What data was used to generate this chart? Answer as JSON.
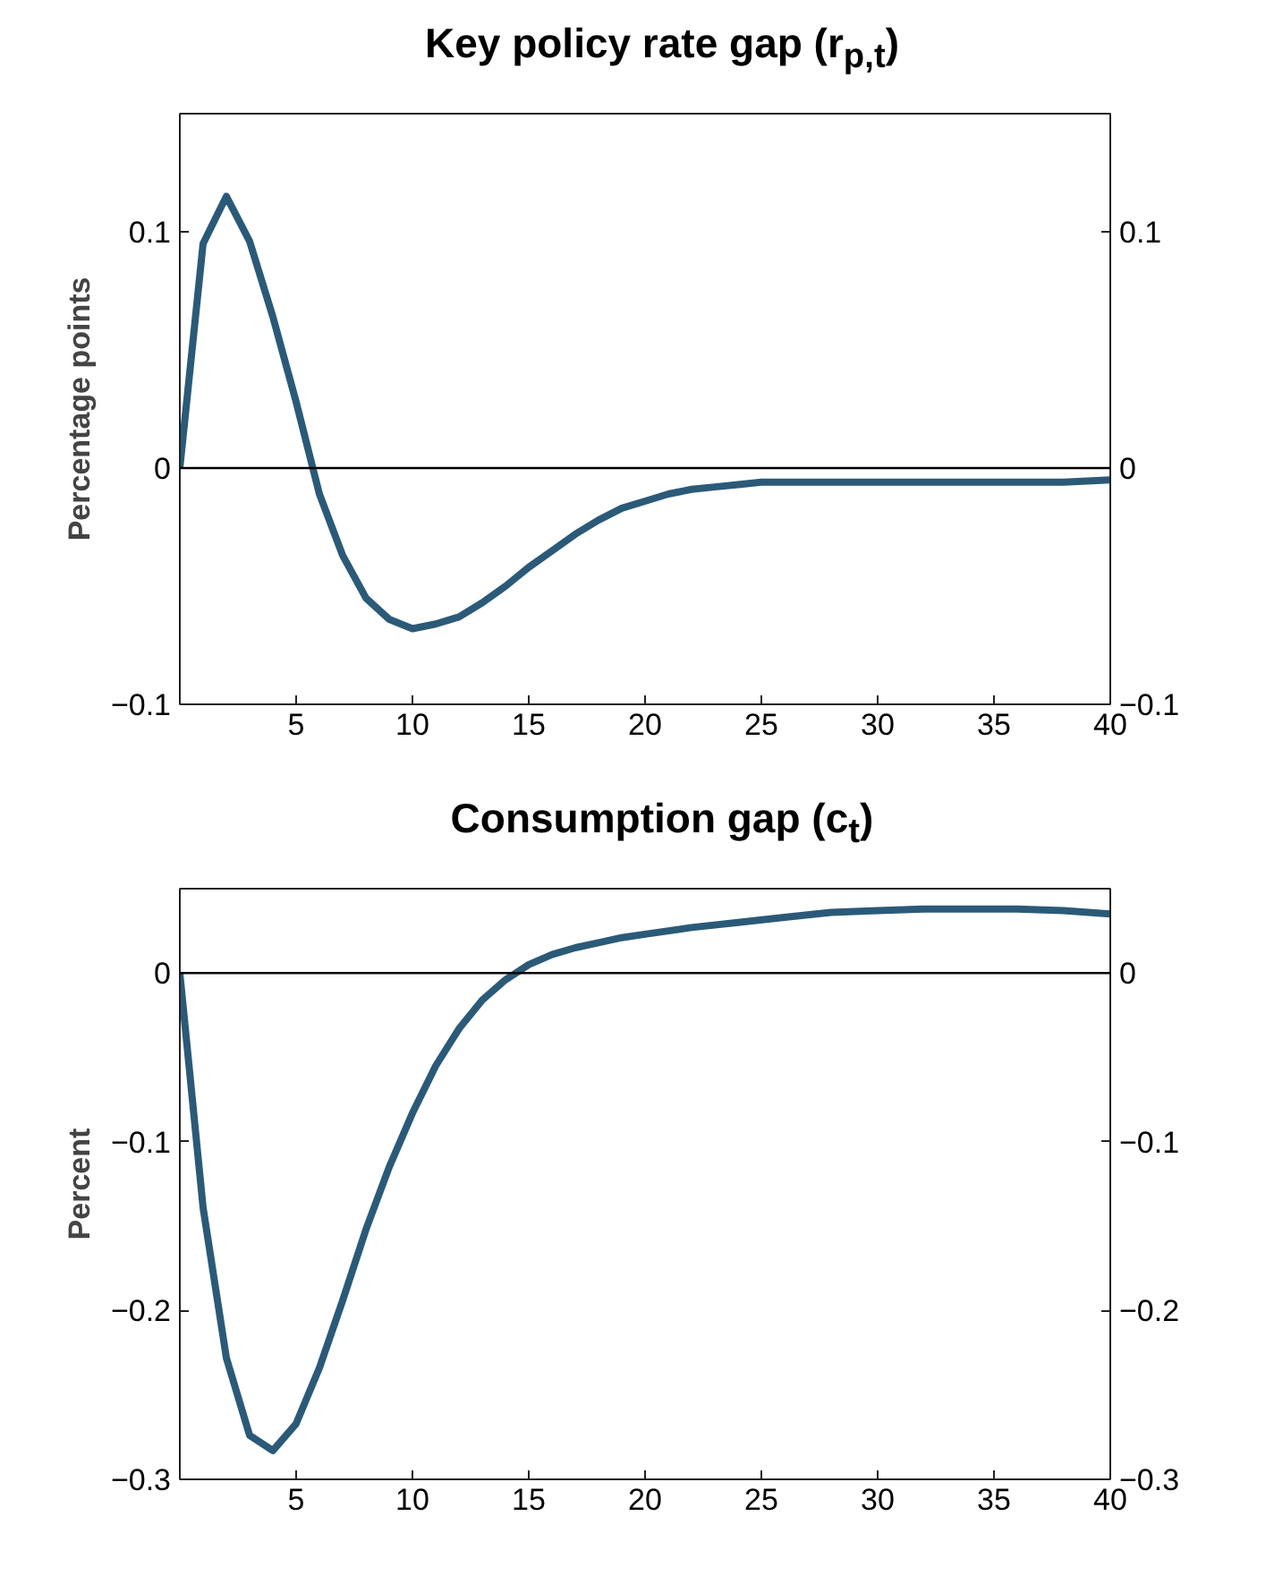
{
  "chart_data": [
    {
      "type": "line",
      "title": "Key policy rate gap (r$_{p,t}$)",
      "ylabel": "Percentage points",
      "x": [
        0,
        1,
        2,
        3,
        4,
        5,
        6,
        7,
        8,
        9,
        10,
        11,
        12,
        13,
        14,
        15,
        16,
        17,
        18,
        19,
        20,
        21,
        22,
        23,
        24,
        25,
        26,
        28,
        30,
        32,
        34,
        36,
        38,
        40
      ],
      "series": [
        {
          "color": "#2b5a78",
          "values": [
            0,
            0.095,
            0.115,
            0.096,
            0.064,
            0.028,
            -0.011,
            -0.037,
            -0.055,
            -0.064,
            -0.068,
            -0.066,
            -0.063,
            -0.057,
            -0.05,
            -0.042,
            -0.035,
            -0.028,
            -0.022,
            -0.017,
            -0.014,
            -0.011,
            -0.009,
            -0.008,
            -0.007,
            -0.006,
            -0.006,
            -0.006,
            -0.006,
            -0.006,
            -0.006,
            -0.006,
            -0.006,
            -0.005
          ]
        }
      ],
      "xlim": [
        0,
        40
      ],
      "xticks": [
        5,
        10,
        15,
        20,
        25,
        30,
        35,
        40
      ],
      "ylim": [
        -0.1,
        0.15
      ],
      "yticks": [
        {
          "value": -0.1,
          "label": "−0.1"
        },
        0,
        0.1
      ],
      "y2lim": [
        -0.1,
        0.15
      ],
      "y2ticks": [
        {
          "value": -0.1,
          "label": "−0.1"
        },
        0,
        0.1
      ],
      "ref_lines": [
        {
          "axis": "y",
          "value": 0,
          "color": "#000000"
        }
      ],
      "grid": false,
      "line_style": "solid",
      "marker": "none"
    },
    {
      "type": "line",
      "title": "Consumption gap (c$_{t}$)",
      "ylabel": "Percent",
      "x": [
        0,
        1,
        2,
        3,
        4,
        5,
        6,
        7,
        8,
        9,
        10,
        11,
        12,
        13,
        14,
        15,
        16,
        17,
        18,
        19,
        20,
        22,
        24,
        26,
        28,
        30,
        32,
        34,
        36,
        38,
        40
      ],
      "series": [
        {
          "color": "#2b5a78",
          "values": [
            0,
            -0.139,
            -0.228,
            -0.274,
            -0.283,
            -0.267,
            -0.234,
            -0.194,
            -0.152,
            -0.115,
            -0.083,
            -0.055,
            -0.033,
            -0.016,
            -0.004,
            0.005,
            0.011,
            0.015,
            0.018,
            0.021,
            0.023,
            0.027,
            0.03,
            0.033,
            0.036,
            0.037,
            0.038,
            0.038,
            0.038,
            0.037,
            0.035
          ]
        }
      ],
      "xlim": [
        0,
        40
      ],
      "xticks": [
        5,
        10,
        15,
        20,
        25,
        30,
        35,
        40
      ],
      "ylim": [
        -0.3,
        0.05
      ],
      "yticks": [
        {
          "value": -0.3,
          "label": "−0.3"
        },
        {
          "value": -0.2,
          "label": "−0.2"
        },
        {
          "value": -0.1,
          "label": "−0.1"
        },
        0
      ],
      "y2lim": [
        -0.3,
        0.05
      ],
      "y2ticks": [
        {
          "value": -0.3,
          "label": "−0.3"
        },
        {
          "value": -0.2,
          "label": "−0.2"
        },
        {
          "value": -0.1,
          "label": "−0.1"
        },
        0
      ],
      "ref_lines": [
        {
          "axis": "y",
          "value": 0,
          "color": "#000000"
        }
      ],
      "grid": false,
      "line_style": "solid",
      "marker": "none"
    }
  ]
}
